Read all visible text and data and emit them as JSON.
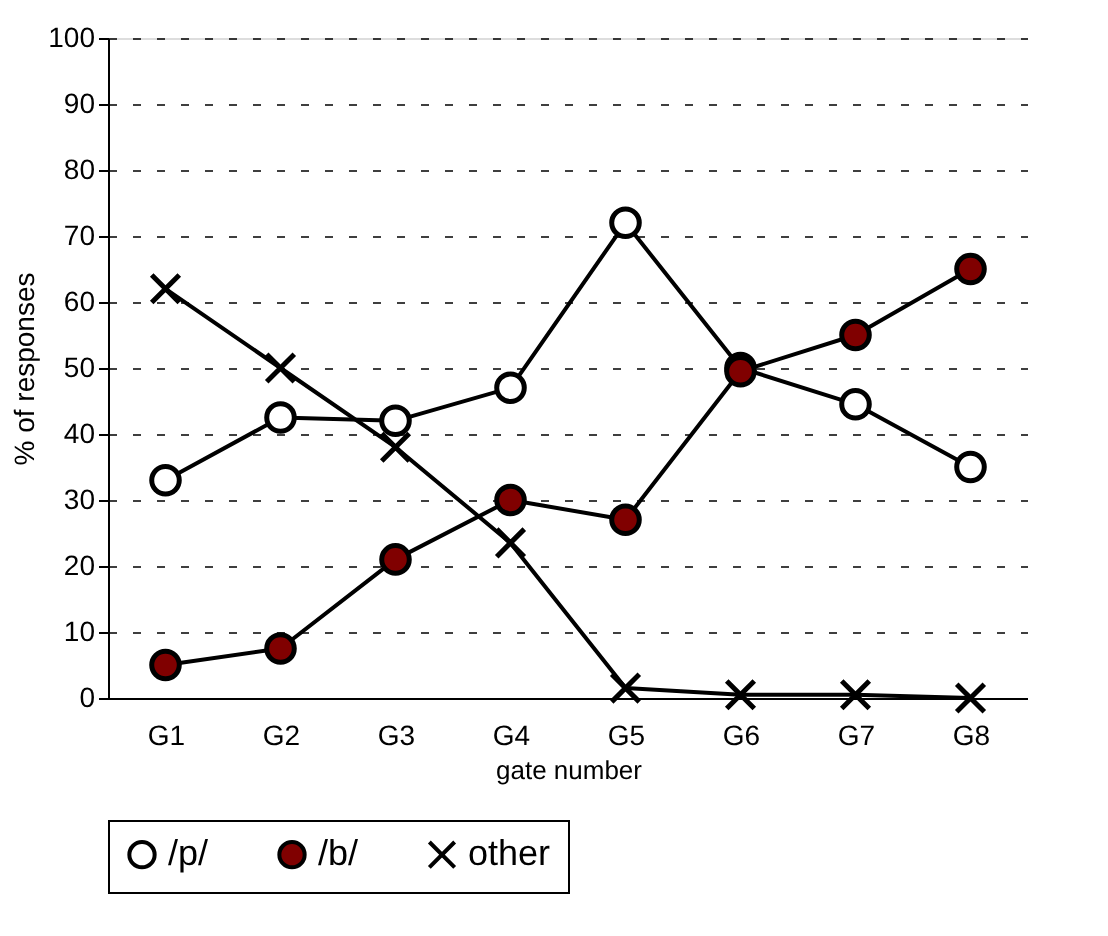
{
  "chart_data": {
    "type": "line",
    "xlabel": "gate number",
    "ylabel": "% of responses",
    "categories": [
      "G1",
      "G2",
      "G3",
      "G4",
      "G5",
      "G6",
      "G7",
      "G8"
    ],
    "series": [
      {
        "name": "/p/",
        "color": "#ffffff",
        "marker": "circle",
        "values": [
          33,
          42.5,
          42,
          47,
          72,
          50,
          44.5,
          35
        ]
      },
      {
        "name": "/b/",
        "color": "#800000",
        "marker": "circle",
        "values": [
          5,
          7.5,
          21,
          30,
          27,
          49.5,
          55,
          65
        ]
      },
      {
        "name": "other",
        "color": "#000000",
        "marker": "cross",
        "values": [
          62,
          50,
          38,
          23.5,
          1.5,
          0.5,
          0.5,
          0
        ]
      }
    ],
    "ylim": [
      0,
      100
    ],
    "yticks": [
      0,
      10,
      20,
      30,
      40,
      50,
      60,
      70,
      80,
      90,
      100
    ],
    "grid": "y",
    "legend": "bottom",
    "line_style": "solid"
  }
}
